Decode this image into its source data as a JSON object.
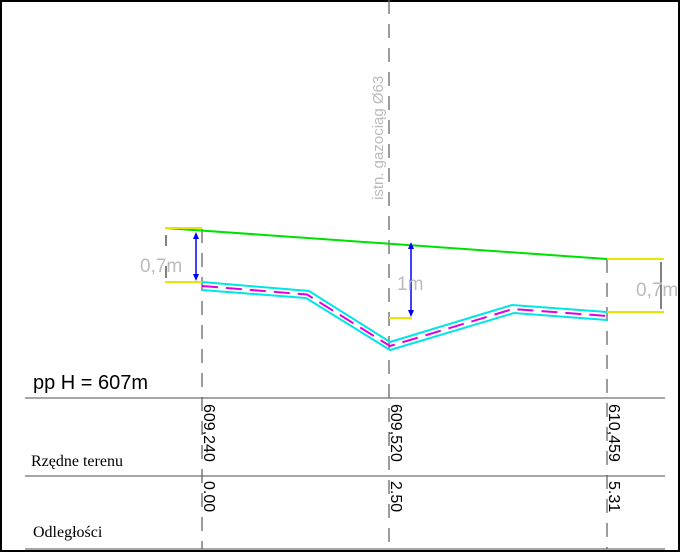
{
  "profile": {
    "datum_label": "pp H = 607m",
    "pipe_label": "istn. gazociąg Ø63",
    "cover_left": "0,7m",
    "cover_middle": "1m",
    "cover_right": "0,7m"
  },
  "table": {
    "row_labels": {
      "elevations": "Rzędne terenu",
      "distances": "Odległości"
    },
    "stations": [
      {
        "elevation": "609,240",
        "distance": "0.00"
      },
      {
        "elevation": "609,520",
        "distance": "2.50"
      },
      {
        "elevation": "610,459",
        "distance": "5.31"
      }
    ]
  },
  "colors": {
    "terrain": "#00e000",
    "pipe_outer": "#00e5e5",
    "pipe_inner": "#e000e0",
    "cover_marker": "#e6e600",
    "dimension": "#0000ff",
    "grid": "#888888"
  }
}
